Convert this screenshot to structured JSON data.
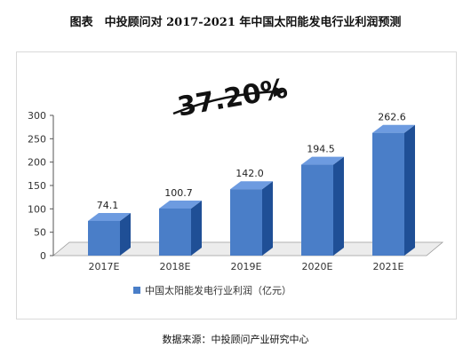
{
  "title": "图表　中投顾问对 2017-2021 年中国太阳能发电行业利润预测",
  "source": "数据来源：中投顾问产业研究中心",
  "growth_label": "37.20%",
  "colors": {
    "bar_front": "#4a7ec8",
    "bar_top": "#6d9be0",
    "bar_side": "#1f4f96"
  },
  "chart_data": {
    "type": "bar",
    "categories": [
      "2017E",
      "2018E",
      "2019E",
      "2020E",
      "2021E"
    ],
    "series": [
      {
        "name": "中国太阳能发电行业利润（亿元）",
        "values": [
          74.1,
          100.7,
          142.0,
          194.5,
          262.6
        ]
      }
    ],
    "value_labels": [
      "74.1",
      "100.7",
      "142.0",
      "194.5",
      "262.6"
    ],
    "ylim": [
      0,
      300
    ],
    "yticks": [
      0,
      50,
      100,
      150,
      200,
      250,
      300
    ],
    "legend": "bottom"
  }
}
